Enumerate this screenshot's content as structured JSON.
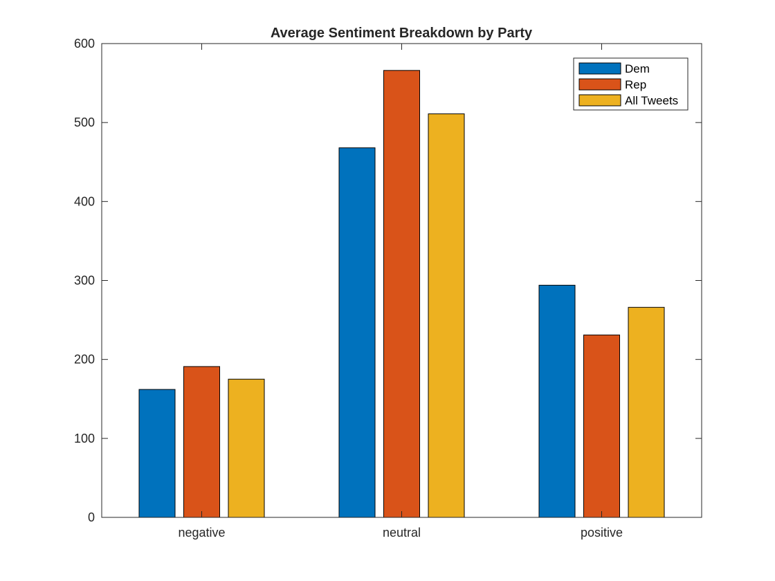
{
  "chart_data": {
    "type": "bar",
    "title": "Average Sentiment Breakdown by Party",
    "xlabel": "",
    "ylabel": "",
    "categories": [
      "negative",
      "neutral",
      "positive"
    ],
    "series": [
      {
        "name": "Dem",
        "values": [
          162,
          468,
          294
        ]
      },
      {
        "name": "Rep",
        "values": [
          191,
          566,
          231
        ]
      },
      {
        "name": "All Tweets",
        "values": [
          175,
          511,
          266
        ]
      }
    ],
    "ylim": [
      0,
      600
    ],
    "yticks": [
      0,
      100,
      200,
      300,
      400,
      500,
      600
    ],
    "grid": false,
    "legend_position": "top-right"
  },
  "colors": {
    "Dem": "#0072BD",
    "Rep": "#D95319",
    "All Tweets": "#EDB120",
    "axes": "#262626",
    "bar_edge": "#000000"
  }
}
